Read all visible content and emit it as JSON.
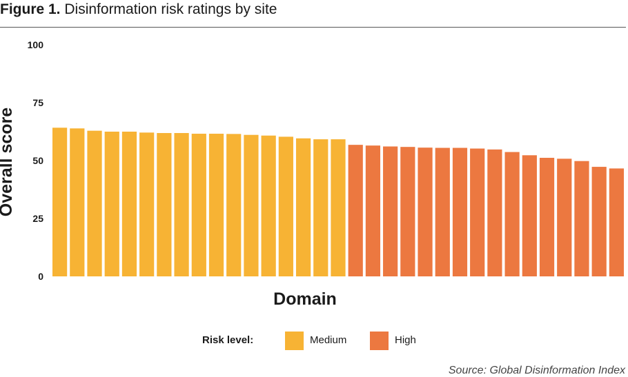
{
  "figure": {
    "number": "Figure 1.",
    "title": "Disinformation risk ratings by site"
  },
  "legend": {
    "title": "Risk level:",
    "items": [
      {
        "label": "Medium",
        "color": "#F7B334"
      },
      {
        "label": "High",
        "color": "#EC7840"
      }
    ]
  },
  "source": "Source: Global Disinformation Index",
  "chart_data": {
    "type": "bar",
    "xlabel": "Domain",
    "ylabel": "Overall score",
    "ylim": [
      0,
      100
    ],
    "yticks": [
      0,
      25,
      50,
      75,
      100
    ],
    "grid": false,
    "legend_position": "bottom",
    "series": [
      {
        "name": "Medium",
        "color": "#F7B334",
        "values": [
          64.2,
          63.9,
          62.9,
          62.5,
          62.5,
          62.1,
          61.9,
          61.9,
          61.6,
          61.6,
          61.5,
          61.1,
          60.8,
          60.3,
          59.6,
          59.2,
          59.2
        ]
      },
      {
        "name": "High",
        "color": "#EC7840",
        "values": [
          56.8,
          56.5,
          56.1,
          55.9,
          55.6,
          55.5,
          55.5,
          55.2,
          54.8,
          53.7,
          52.3,
          51.2,
          50.8,
          49.8,
          47.3,
          46.6
        ]
      }
    ]
  }
}
